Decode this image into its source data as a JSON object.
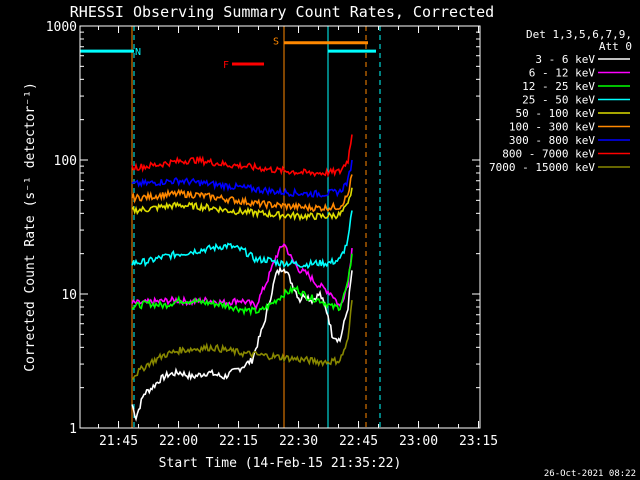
{
  "chart_data": {
    "type": "line",
    "title": "RHESSI Observing Summary Count Rates, Corrected",
    "xlabel": "Start Time (14-Feb-15 21:35:22)",
    "ylabel": "Corrected Count Rate (s⁻¹ detector⁻¹)",
    "x_unit": "minutes after 21:35:22",
    "xlim": [
      0,
      100
    ],
    "ylim": [
      1,
      1000
    ],
    "y_scale": "log",
    "grid": false,
    "legend_placement": "top-right, outside plot",
    "x_ticks": [
      "21:45",
      "22:00",
      "22:15",
      "22:30",
      "22:45",
      "23:00",
      "23:15"
    ],
    "y_ticks": [
      "1",
      "10",
      "100",
      "1000"
    ],
    "legend_header": [
      "Det 1,3,5,6,7,9,",
      "Att 0"
    ],
    "series": [
      {
        "name": "3 - 6 keV",
        "color": "#ffffff",
        "x": [
          13,
          14,
          16,
          18,
          20,
          22,
          25,
          28,
          32,
          36,
          40,
          43,
          46,
          49,
          51,
          53,
          55,
          56,
          58,
          60,
          62,
          63,
          65,
          67,
          68
        ],
        "y": [
          1.5,
          1.2,
          1.8,
          2.0,
          2.3,
          2.5,
          2.6,
          2.4,
          2.6,
          2.4,
          2.8,
          3.2,
          6.0,
          14,
          16,
          12,
          9,
          10,
          9,
          10,
          7,
          5,
          4.5,
          8,
          15
        ]
      },
      {
        "name": "6 - 12 keV",
        "color": "#ff00ff",
        "x": [
          13,
          16,
          20,
          24,
          28,
          32,
          36,
          40,
          44,
          47,
          49,
          51,
          53,
          55,
          57,
          59,
          61,
          63,
          65,
          67,
          68
        ],
        "y": [
          8.5,
          8.6,
          8.8,
          9.0,
          8.7,
          9.0,
          8.6,
          9.0,
          8.2,
          13,
          19,
          24,
          18,
          15,
          14,
          12,
          11,
          10,
          8,
          12,
          22
        ]
      },
      {
        "name": "12 - 25 keV",
        "color": "#00ff00",
        "x": [
          13,
          17,
          21,
          25,
          29,
          33,
          37,
          41,
          45,
          48,
          51,
          54,
          57,
          60,
          63,
          65,
          67,
          68
        ],
        "y": [
          8.0,
          8.5,
          8.2,
          9.0,
          8.8,
          8.5,
          8.2,
          7.6,
          7.4,
          8.5,
          10,
          11,
          9.5,
          9,
          8,
          8,
          12,
          20
        ]
      },
      {
        "name": "25 - 50 keV",
        "color": "#00ffff",
        "x": [
          13,
          17,
          21,
          25,
          29,
          33,
          37,
          41,
          44,
          47,
          50,
          53,
          56,
          59,
          62,
          65,
          67,
          68
        ],
        "y": [
          17,
          17.5,
          19,
          20,
          21,
          22,
          23,
          21,
          18,
          18,
          17,
          17,
          16.5,
          17,
          17,
          18,
          25,
          42
        ]
      },
      {
        "name": "50 - 100 keV",
        "color": "#dddd00",
        "x": [
          13,
          17,
          21,
          25,
          29,
          33,
          37,
          41,
          45,
          49,
          53,
          57,
          61,
          65,
          67,
          68
        ],
        "y": [
          42,
          43,
          45,
          46,
          45,
          44,
          42,
          41,
          40,
          39,
          38.5,
          38,
          38,
          39,
          46,
          62
        ]
      },
      {
        "name": "100 - 300 keV",
        "color": "#ff8800",
        "x": [
          13,
          17,
          21,
          25,
          29,
          33,
          37,
          41,
          45,
          49,
          53,
          57,
          61,
          65,
          67,
          68
        ],
        "y": [
          52,
          53,
          55,
          56,
          55,
          53,
          51,
          49,
          47,
          46,
          45,
          44,
          44,
          45,
          55,
          78
        ]
      },
      {
        "name": "300 - 800 keV",
        "color": "#0000ff",
        "x": [
          13,
          17,
          21,
          25,
          29,
          33,
          37,
          41,
          45,
          49,
          53,
          57,
          61,
          65,
          67,
          68
        ],
        "y": [
          66,
          67,
          69,
          70,
          68,
          66,
          64,
          62,
          60,
          58,
          57,
          56,
          56,
          58,
          70,
          100
        ]
      },
      {
        "name": "800 - 7000 keV",
        "color": "#ff0000",
        "x": [
          13,
          17,
          21,
          25,
          29,
          33,
          37,
          41,
          45,
          49,
          53,
          57,
          61,
          65,
          67,
          68
        ],
        "y": [
          88,
          90,
          94,
          98,
          100,
          96,
          92,
          90,
          87,
          84,
          82,
          80,
          80,
          82,
          100,
          155
        ]
      },
      {
        "name": "7000 - 15000 keV",
        "color": "#888800",
        "x": [
          13,
          17,
          21,
          25,
          29,
          33,
          37,
          41,
          45,
          49,
          53,
          57,
          61,
          65,
          67,
          68
        ],
        "y": [
          2.4,
          3.0,
          3.5,
          3.8,
          3.9,
          4.0,
          3.8,
          3.6,
          3.5,
          3.4,
          3.3,
          3.2,
          3.1,
          3.2,
          4.5,
          9
        ]
      }
    ],
    "intervals": [
      {
        "label": "N",
        "color": "#00ffff",
        "x_start": 0,
        "x_end": 13.5,
        "y": 650,
        "style": "solid",
        "label_x": 14.5,
        "label_y": 650
      },
      {
        "label": "N",
        "color": "#00ffff",
        "x_start": 62,
        "x_end": 74,
        "y": 650,
        "style": "solid"
      },
      {
        "label": "S",
        "color": "#ff8800",
        "x_start": 51,
        "x_end": 72,
        "y": 750,
        "style": "solid",
        "label_x": 49,
        "label_y": 780
      },
      {
        "label": "F",
        "color": "#ff0000",
        "x_start": 38,
        "x_end": 46,
        "y": 520,
        "style": "solid",
        "label_x": 36.5,
        "label_y": 520
      }
    ],
    "vlines": [
      {
        "x": 13,
        "color": "#ff8800",
        "style": "solid"
      },
      {
        "x": 13.5,
        "color": "#00ffff",
        "style": "dashed"
      },
      {
        "x": 51,
        "color": "#ff8800",
        "style": "solid"
      },
      {
        "x": 62,
        "color": "#00ffff",
        "style": "solid"
      },
      {
        "x": 71.5,
        "color": "#ff8800",
        "style": "dashed"
      },
      {
        "x": 75,
        "color": "#00ffff",
        "style": "dashed"
      }
    ]
  },
  "footer": {
    "timestamp": "26-Oct-2021 08:22"
  }
}
